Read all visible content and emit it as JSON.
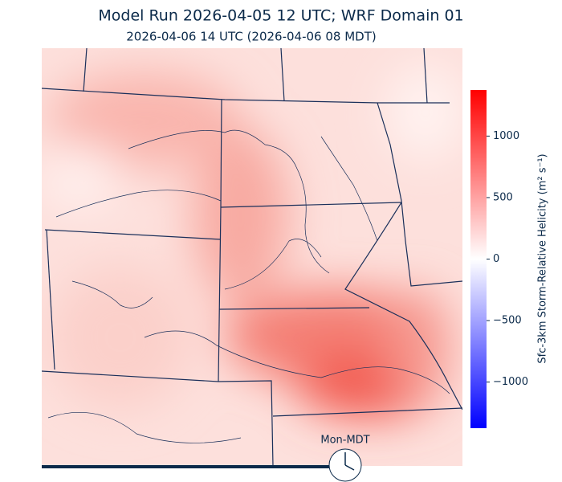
{
  "header": {
    "title": "Model Run 2026-04-05 12 UTC; WRF Domain 01",
    "subtitle": "2026-04-06 14 UTC  (2026-04-06 08 MDT)"
  },
  "colorbar": {
    "label": "Sfc-3km Storm-Relative Helicity (m² s⁻¹)",
    "range": [
      -1375,
      1375
    ],
    "ticks": [
      {
        "value": -1000,
        "label": "−1000"
      },
      {
        "value": -500,
        "label": "−500"
      },
      0,
      500,
      1000
    ]
  },
  "clock": {
    "label": "Mon-MDT"
  }
}
